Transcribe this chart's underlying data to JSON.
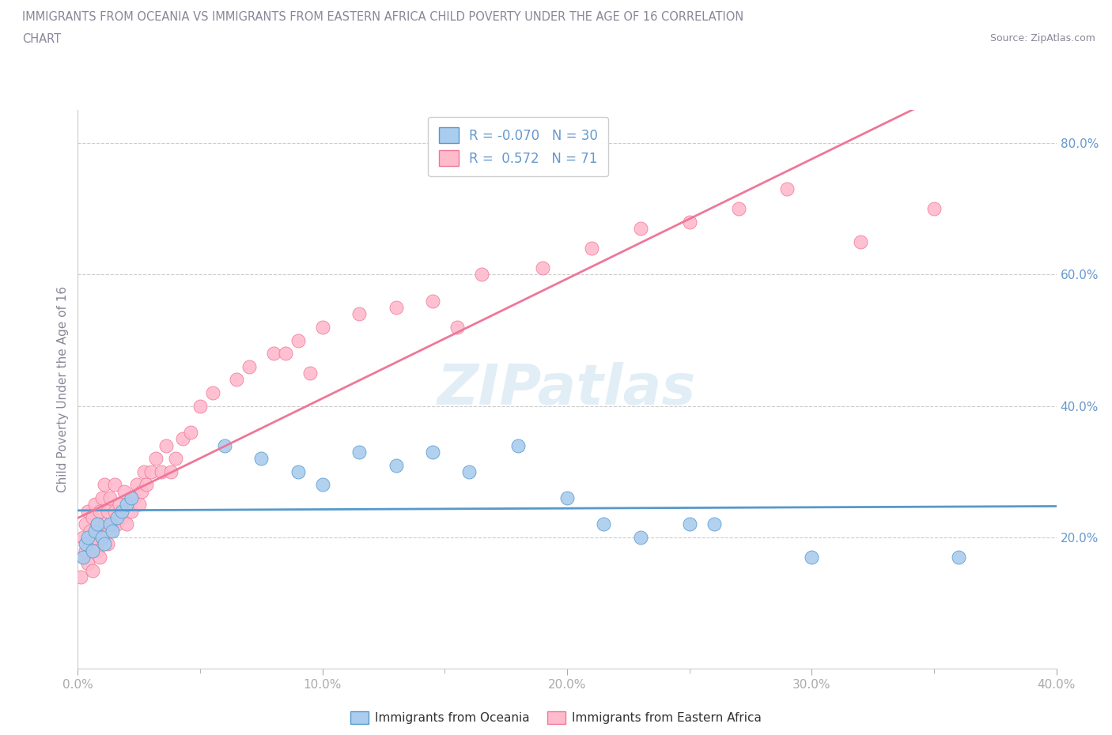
{
  "title_line1": "IMMIGRANTS FROM OCEANIA VS IMMIGRANTS FROM EASTERN AFRICA CHILD POVERTY UNDER THE AGE OF 16 CORRELATION",
  "title_line2": "CHART",
  "source_text": "Source: ZipAtlas.com",
  "ylabel": "Child Poverty Under the Age of 16",
  "xlim": [
    0.0,
    0.4
  ],
  "ylim": [
    0.0,
    0.85
  ],
  "xtick_labels": [
    "0.0%",
    "",
    "10.0%",
    "",
    "20.0%",
    "",
    "30.0%",
    "",
    "40.0%"
  ],
  "xtick_values": [
    0.0,
    0.05,
    0.1,
    0.15,
    0.2,
    0.25,
    0.3,
    0.35,
    0.4
  ],
  "xtick_display_labels": [
    "0.0%",
    "10.0%",
    "20.0%",
    "30.0%",
    "40.0%"
  ],
  "xtick_display_values": [
    0.0,
    0.1,
    0.2,
    0.3,
    0.4
  ],
  "ytick_labels": [
    "20.0%",
    "40.0%",
    "60.0%",
    "80.0%"
  ],
  "ytick_values": [
    0.2,
    0.4,
    0.6,
    0.8
  ],
  "grid_color": "#cccccc",
  "background_color": "#ffffff",
  "watermark_text": "ZIPatlas",
  "legend_label_oceania": "Immigrants from Oceania",
  "legend_label_africa": "Immigrants from Eastern Africa",
  "R_oceania": -0.07,
  "N_oceania": 30,
  "R_africa": 0.572,
  "N_africa": 71,
  "color_oceania": "#aaccee",
  "color_africa": "#ffbbcc",
  "line_color_oceania": "#5599cc",
  "line_color_africa": "#ee7799",
  "text_color": "#888899",
  "tick_color_y": "#6699cc",
  "tick_color_x": "#aaaaaa",
  "scatter_oceania_x": [
    0.002,
    0.003,
    0.004,
    0.006,
    0.007,
    0.008,
    0.01,
    0.011,
    0.013,
    0.014,
    0.016,
    0.018,
    0.02,
    0.022,
    0.06,
    0.075,
    0.09,
    0.1,
    0.115,
    0.13,
    0.145,
    0.16,
    0.18,
    0.2,
    0.215,
    0.23,
    0.25,
    0.26,
    0.3,
    0.36
  ],
  "scatter_oceania_y": [
    0.17,
    0.19,
    0.2,
    0.18,
    0.21,
    0.22,
    0.2,
    0.19,
    0.22,
    0.21,
    0.23,
    0.24,
    0.25,
    0.26,
    0.34,
    0.32,
    0.3,
    0.28,
    0.33,
    0.31,
    0.33,
    0.3,
    0.34,
    0.26,
    0.22,
    0.2,
    0.22,
    0.22,
    0.17,
    0.17
  ],
  "scatter_africa_x": [
    0.001,
    0.002,
    0.002,
    0.003,
    0.003,
    0.004,
    0.004,
    0.005,
    0.005,
    0.006,
    0.006,
    0.007,
    0.007,
    0.008,
    0.008,
    0.009,
    0.009,
    0.01,
    0.01,
    0.011,
    0.011,
    0.012,
    0.012,
    0.013,
    0.013,
    0.014,
    0.015,
    0.015,
    0.016,
    0.017,
    0.018,
    0.019,
    0.02,
    0.021,
    0.022,
    0.023,
    0.024,
    0.025,
    0.026,
    0.027,
    0.028,
    0.03,
    0.032,
    0.034,
    0.036,
    0.038,
    0.04,
    0.043,
    0.046,
    0.05,
    0.055,
    0.065,
    0.07,
    0.08,
    0.085,
    0.09,
    0.095,
    0.1,
    0.115,
    0.13,
    0.145,
    0.155,
    0.165,
    0.19,
    0.21,
    0.23,
    0.25,
    0.27,
    0.29,
    0.32,
    0.35
  ],
  "scatter_africa_y": [
    0.14,
    0.17,
    0.2,
    0.18,
    0.22,
    0.16,
    0.24,
    0.19,
    0.21,
    0.15,
    0.23,
    0.2,
    0.25,
    0.18,
    0.22,
    0.24,
    0.17,
    0.2,
    0.26,
    0.22,
    0.28,
    0.19,
    0.24,
    0.21,
    0.26,
    0.22,
    0.24,
    0.28,
    0.22,
    0.25,
    0.23,
    0.27,
    0.22,
    0.25,
    0.24,
    0.26,
    0.28,
    0.25,
    0.27,
    0.3,
    0.28,
    0.3,
    0.32,
    0.3,
    0.34,
    0.3,
    0.32,
    0.35,
    0.36,
    0.4,
    0.42,
    0.44,
    0.46,
    0.48,
    0.48,
    0.5,
    0.45,
    0.52,
    0.54,
    0.55,
    0.56,
    0.52,
    0.6,
    0.61,
    0.64,
    0.67,
    0.68,
    0.7,
    0.73,
    0.65,
    0.7
  ]
}
